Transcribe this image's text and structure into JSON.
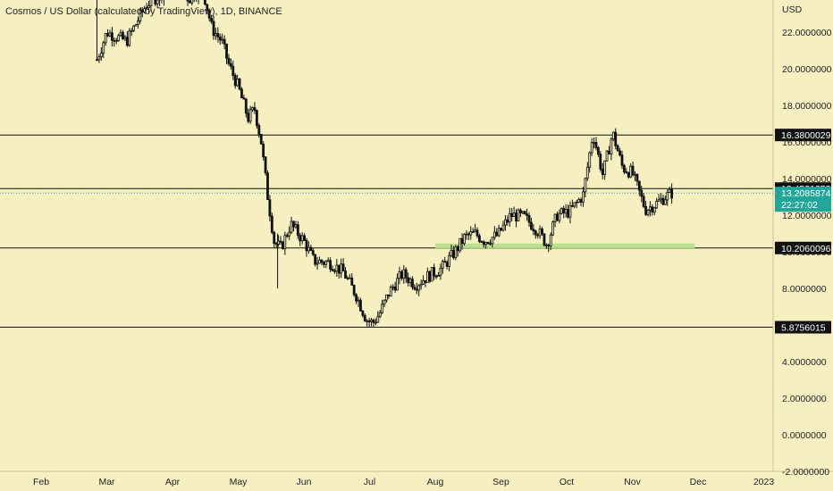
{
  "chart_title": "Cosmos / US Dollar (calculated by TradingView), 1D, BINANCE",
  "currency_label": "USD",
  "colors": {
    "background": "#f6efc2",
    "candle": "#111111",
    "level_line": "#111111",
    "level_tag_bg": "#111111",
    "level_tag_text": "#ffffff",
    "current_tag_bg": "#22a699",
    "zone": "#b8e38c",
    "axis_text": "#222222"
  },
  "chart_data": {
    "type": "candlestick",
    "x_axis": {
      "labels": [
        "Feb",
        "Mar",
        "Apr",
        "May",
        "Jun",
        "Jul",
        "Aug",
        "Sep",
        "Oct",
        "Nov",
        "Dec",
        "2023"
      ],
      "months": [
        1,
        2,
        3,
        4,
        5,
        6,
        7,
        8,
        9,
        10,
        11,
        12
      ]
    },
    "y_axis": {
      "ticks": [
        "22.0000000",
        "20.0000000",
        "18.0000000",
        "16.0000000",
        "14.0000000",
        "12.0000000",
        "10.0000000",
        "8.0000000",
        "4.0000000",
        "2.0000000",
        "0.0000000",
        "-2.0000000"
      ],
      "tick_values": [
        22,
        20,
        18,
        16,
        14,
        12,
        10,
        8,
        4,
        2,
        0,
        -2
      ],
      "range": [
        -2,
        24
      ]
    },
    "horizontal_levels": [
      {
        "price": 16.38,
        "label": "16.3800029"
      },
      {
        "price": 13.4521253,
        "label": "13.4521253"
      },
      {
        "price": 10.2060096,
        "label": "10.2060096"
      },
      {
        "price": 5.8756015,
        "label": "5.8756015"
      }
    ],
    "current_price": {
      "price": 13.2085874,
      "label": "13.2085874",
      "countdown": "22:27:02"
    },
    "support_zone": {
      "price_low": 10.2,
      "price_high": 10.45,
      "month_start": 7.0,
      "month_end": 10.95
    },
    "price_path": [
      [
        1.85,
        20.5
      ],
      [
        2.0,
        22.0
      ],
      [
        2.3,
        21.5
      ],
      [
        2.6,
        23.5
      ],
      [
        2.9,
        24.3
      ],
      [
        3.1,
        24.5
      ],
      [
        3.25,
        23.8
      ],
      [
        3.45,
        24.5
      ],
      [
        3.6,
        22.2
      ],
      [
        3.75,
        21.5
      ],
      [
        3.85,
        20.3
      ],
      [
        4.0,
        19.0
      ],
      [
        4.15,
        17.3
      ],
      [
        4.25,
        17.8
      ],
      [
        4.35,
        16.0
      ],
      [
        4.45,
        13.0
      ],
      [
        4.55,
        10.5
      ],
      [
        4.65,
        10.2
      ],
      [
        4.8,
        11.5
      ],
      [
        5.0,
        10.6
      ],
      [
        5.15,
        9.5
      ],
      [
        5.4,
        9.4
      ],
      [
        5.6,
        8.9
      ],
      [
        5.8,
        7.6
      ],
      [
        5.95,
        6.3
      ],
      [
        6.05,
        6.1
      ],
      [
        6.15,
        6.6
      ],
      [
        6.3,
        7.8
      ],
      [
        6.5,
        8.8
      ],
      [
        6.7,
        8.2
      ],
      [
        6.9,
        8.7
      ],
      [
        7.1,
        9.1
      ],
      [
        7.3,
        10.0
      ],
      [
        7.45,
        10.8
      ],
      [
        7.6,
        11.0
      ],
      [
        7.75,
        10.6
      ],
      [
        7.95,
        10.9
      ],
      [
        8.15,
        12.0
      ],
      [
        8.35,
        11.9
      ],
      [
        8.55,
        11.2
      ],
      [
        8.7,
        10.4
      ],
      [
        8.85,
        12.0
      ],
      [
        9.05,
        12.2
      ],
      [
        9.25,
        13.1
      ],
      [
        9.4,
        16.5
      ],
      [
        9.55,
        14.2
      ],
      [
        9.7,
        16.5
      ],
      [
        9.85,
        14.6
      ],
      [
        10.0,
        14.3
      ],
      [
        10.1,
        13.3
      ],
      [
        10.2,
        12.3
      ],
      [
        10.35,
        12.6
      ],
      [
        10.5,
        13.0
      ],
      [
        10.6,
        13.21
      ]
    ]
  }
}
